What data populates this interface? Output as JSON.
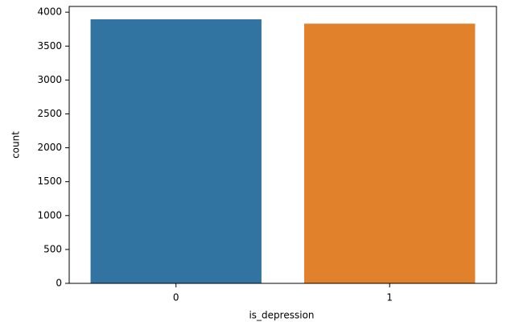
{
  "chart_data": {
    "type": "bar",
    "x_label": "is_depression",
    "y_label": "count",
    "categories": [
      "0",
      "1"
    ],
    "values": [
      3895,
      3831
    ],
    "colors": [
      "#3274a1",
      "#e1812c"
    ],
    "ylim": [
      0,
      4085
    ],
    "yticks": [
      0,
      500,
      1000,
      1500,
      2000,
      2500,
      3000,
      3500,
      4000
    ],
    "grid": false
  }
}
